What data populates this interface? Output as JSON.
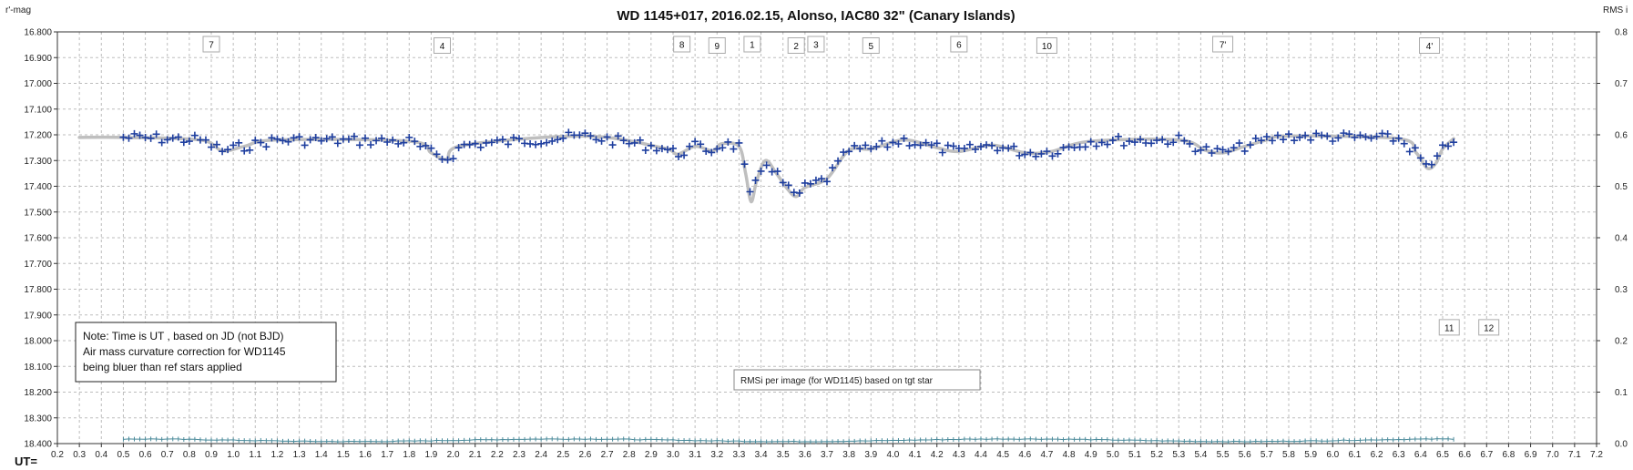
{
  "chart_data": {
    "type": "scatter",
    "title": "WD 1145+017,  2016.02.15,  Alonso,  IAC80  32\" (Canary Islands)",
    "ylabel_left": "r'-mag",
    "ylabel_right": "RMS i",
    "xlabel": "UT=",
    "xlim": [
      0.2,
      7.2
    ],
    "ylim_left": [
      16.8,
      18.4
    ],
    "ylim_right": [
      0.0,
      0.8
    ],
    "left_axis_inverted": true,
    "grid": true,
    "x_ticks": [
      "0.2",
      "0.3",
      "0.4",
      "0.5",
      "0.6",
      "0.7",
      "0.8",
      "0.9",
      "1.0",
      "1.1",
      "1.2",
      "1.3",
      "1.4",
      "1.5",
      "1.6",
      "1.7",
      "1.8",
      "1.9",
      "2.0",
      "2.1",
      "2.2",
      "2.3",
      "2.4",
      "2.5",
      "2.6",
      "2.7",
      "2.8",
      "2.9",
      "3.0",
      "3.1",
      "3.2",
      "3.3",
      "3.4",
      "3.5",
      "3.6",
      "3.7",
      "3.8",
      "3.9",
      "4.0",
      "4.1",
      "4.2",
      "4.3",
      "4.4",
      "4.5",
      "4.6",
      "4.7",
      "4.8",
      "4.9",
      "5.0",
      "5.1",
      "5.2",
      "5.3",
      "5.4",
      "5.5",
      "5.6",
      "5.7",
      "5.8",
      "5.9",
      "6.0",
      "6.1",
      "6.2",
      "6.3",
      "6.4",
      "6.5",
      "6.6",
      "6.7",
      "6.8",
      "6.9",
      "7.0",
      "7.1",
      "7.2"
    ],
    "y_ticks_left": [
      "16.800",
      "16.900",
      "17.000",
      "17.100",
      "17.200",
      "17.300",
      "17.400",
      "17.500",
      "17.600",
      "17.700",
      "17.800",
      "17.900",
      "18.000",
      "18.100",
      "18.200",
      "18.300",
      "18.400"
    ],
    "y_ticks_right": [
      "0.8",
      "0.7",
      "0.6",
      "0.5",
      "0.4",
      "0.3",
      "0.2",
      "0.1",
      "0.0"
    ],
    "series": [
      {
        "kind": "measurements",
        "marker": "+",
        "color": "#1f3f9f",
        "x_range": [
          0.5,
          6.55
        ],
        "baseline_mag": 17.215,
        "note": "r'-mag measurements, roughly one every 0.025 h"
      },
      {
        "kind": "model",
        "color": "#bfbfbf",
        "x": [
          0.3,
          0.5,
          0.85,
          0.95,
          1.05,
          1.2,
          1.8,
          1.9,
          1.97,
          2.05,
          2.6,
          2.95,
          3.02,
          3.1,
          3.18,
          3.22,
          3.3,
          3.33,
          3.355,
          3.38,
          3.42,
          3.47,
          3.52,
          3.56,
          3.6,
          3.7,
          3.8,
          3.9,
          4.05,
          4.2,
          4.3,
          4.45,
          4.6,
          4.72,
          4.9,
          5.3,
          5.42,
          5.5,
          5.6,
          5.7,
          5.8,
          6.3,
          6.38,
          6.43,
          6.47,
          6.5,
          6.55
        ],
        "y": [
          17.21,
          17.21,
          17.22,
          17.262,
          17.245,
          17.22,
          17.225,
          17.27,
          17.295,
          17.24,
          17.205,
          17.25,
          17.275,
          17.245,
          17.262,
          17.235,
          17.245,
          17.35,
          17.46,
          17.38,
          17.3,
          17.35,
          17.41,
          17.44,
          17.405,
          17.37,
          17.26,
          17.255,
          17.22,
          17.25,
          17.265,
          17.24,
          17.27,
          17.265,
          17.225,
          17.22,
          17.26,
          17.27,
          17.245,
          17.22,
          17.205,
          17.215,
          17.27,
          17.33,
          17.31,
          17.255,
          17.215
        ]
      },
      {
        "kind": "rms",
        "name": "RMSi per image (for WD1145) based on tgt star",
        "color": "#4a8a9a",
        "axis": "right",
        "x_range": [
          0.5,
          6.55
        ],
        "level": 0.0065
      }
    ],
    "event_labels": [
      {
        "text": "7",
        "x": 0.9
      },
      {
        "text": "4",
        "x": 1.95
      },
      {
        "text": "8",
        "x": 3.04
      },
      {
        "text": "9",
        "x": 3.2
      },
      {
        "text": "1",
        "x": 3.36
      },
      {
        "text": "2",
        "x": 3.56
      },
      {
        "text": "3",
        "x": 3.65
      },
      {
        "text": "5",
        "x": 3.9
      },
      {
        "text": "6",
        "x": 4.3
      },
      {
        "text": "10",
        "x": 4.7
      },
      {
        "text": "7'",
        "x": 5.5
      },
      {
        "text": "4'",
        "x": 6.44
      },
      {
        "text": "11",
        "x": 6.53,
        "mag": 17.95
      },
      {
        "text": "12",
        "x": 6.71,
        "mag": 17.95
      }
    ],
    "note_box": {
      "lines": [
        "Note: Time is UT , based on JD (not BJD)",
        "Air mass  curvature correction for WD1145",
        "being bluer than ref stars applied"
      ]
    },
    "rms_legend": "RMSi per image (for WD1145) based on tgt star"
  }
}
